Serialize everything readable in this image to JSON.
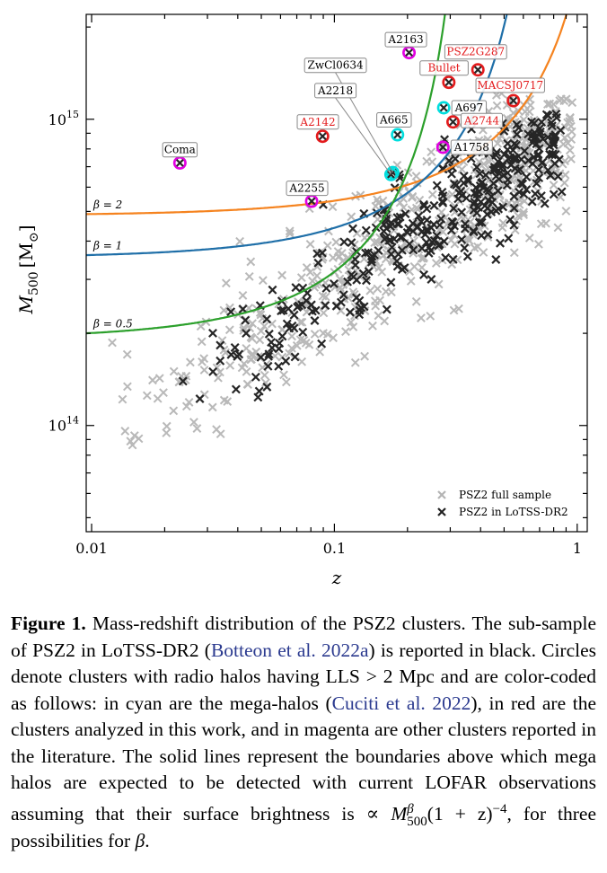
{
  "chart_data": {
    "type": "scatter",
    "xlabel": "z",
    "ylabel": "M",
    "ylabel_sub": "500",
    "ylabel_unit": "[M",
    "ylabel_unit_sub": "⊙",
    "ylabel_unit_close": "]",
    "xscale": "log",
    "yscale": "log",
    "xlim": [
      0.0095,
      1.1
    ],
    "ylim": [
      45000000000000.0,
      2200000000000000.0
    ],
    "x_ticks": [
      {
        "value": 0.01,
        "label": "0.01"
      },
      {
        "value": 0.1,
        "label": "0.1"
      },
      {
        "value": 1,
        "label": "1"
      }
    ],
    "y_ticks": [
      {
        "value": 100000000000000.0,
        "base": "10",
        "exp": "14"
      },
      {
        "value": 1000000000000000.0,
        "base": "10",
        "exp": "15"
      }
    ],
    "grid": false,
    "legend": {
      "position": "bottom-right",
      "entries": [
        {
          "label": "PSZ2 full sample",
          "marker": "x",
          "color": "#b4b4b4"
        },
        {
          "label": "PSZ2 in LoTSS-DR2",
          "marker": "x",
          "color": "#222222"
        }
      ]
    },
    "boundary_lines": [
      {
        "label": "β = 2",
        "color": "#f5831f",
        "z0": 0.0095,
        "m_at_z0": 490000000000000.0,
        "z_inf": 1.45
      },
      {
        "label": "β = 1",
        "color": "#1f6fa8",
        "z0": 0.0095,
        "m_at_z0": 360000000000000.0,
        "z_inf": 0.74
      },
      {
        "label": "β = 0.5",
        "color": "#2ca02c",
        "z0": 0.0095,
        "m_at_z0": 200000000000000.0,
        "z_inf": 0.36
      }
    ],
    "halos": [
      {
        "name": "Coma",
        "z": 0.0231,
        "m": 720000000000000.0,
        "color": "#e100e1",
        "category": "literature",
        "label_z": 0.0231,
        "label_m": 795000000000000.0
      },
      {
        "name": "A2255",
        "z": 0.0806,
        "m": 540000000000000.0,
        "color": "#e100e1",
        "category": "literature",
        "label_z": 0.0772,
        "label_m": 595000000000000.0
      },
      {
        "name": "A2142",
        "z": 0.0894,
        "m": 880000000000000.0,
        "color": "#e31a1c",
        "category": "this work",
        "label_z": 0.0855,
        "label_m": 980000000000000.0
      },
      {
        "name": "ZwCl0634",
        "z": 0.174,
        "m": 670000000000000.0,
        "color": "#00dede",
        "category": "mega-halo",
        "label_z": 0.101,
        "label_m": 1500000000000000.0
      },
      {
        "name": "A2218",
        "z": 0.171,
        "m": 660000000000000.0,
        "color": "#00dede",
        "category": "mega-halo",
        "label_z": 0.101,
        "label_m": 1240000000000000.0
      },
      {
        "name": "A665",
        "z": 0.182,
        "m": 890000000000000.0,
        "color": "#00dede",
        "category": "mega-halo",
        "label_z": 0.176,
        "label_m": 995000000000000.0
      },
      {
        "name": "A2163",
        "z": 0.203,
        "m": 1650000000000000.0,
        "color": "#e100e1",
        "category": "literature",
        "label_z": 0.197,
        "label_m": 1820000000000000.0
      },
      {
        "name": "A697",
        "z": 0.282,
        "m": 1090000000000000.0,
        "color": "#00dede",
        "category": "mega-halo",
        "label_z": 0.345,
        "label_m": 1090000000000000.0
      },
      {
        "name": "A1758",
        "z": 0.28,
        "m": 810000000000000.0,
        "color": "#e100e1",
        "category": "literature",
        "label_z": 0.36,
        "label_m": 810000000000000.0
      },
      {
        "name": "A2744",
        "z": 0.308,
        "m": 980000000000000.0,
        "color": "#e31a1c",
        "category": "this work",
        "label_z": 0.395,
        "label_m": 990000000000000.0
      },
      {
        "name": "Bullet",
        "z": 0.296,
        "m": 1320000000000000.0,
        "color": "#e31a1c",
        "category": "this work",
        "label_z": 0.283,
        "label_m": 1470000000000000.0
      },
      {
        "name": "PSZ2G287",
        "z": 0.39,
        "m": 1450000000000000.0,
        "color": "#e31a1c",
        "category": "this work",
        "label_z": 0.382,
        "label_m": 1660000000000000.0
      },
      {
        "name": "MACSJ0717",
        "z": 0.546,
        "m": 1150000000000000.0,
        "color": "#e31a1c",
        "category": "this work",
        "label_z": 0.53,
        "label_m": 1290000000000000.0
      }
    ]
  },
  "caption": {
    "fig_label": "Figure 1.",
    "text_1": " Mass-redshift distribution of the PSZ2 clusters. The sub-sample of PSZ2 in LoTSS-DR2 (",
    "cite_1": "Botteon et al. 2022a",
    "text_2": ") is reported in black. Circles denote clusters with radio halos having LLS > 2 Mpc and are color-coded as follows: in cyan are the mega-halos (",
    "cite_2": "Cuciti et al. 2022",
    "text_3": "), in red are the clusters analyzed in this work, and in magenta are other clusters reported in the literature. The solid lines represent the boundaries above which mega halos are expected to be detected with current LOFAR observations assuming that their surface brightness is ∝ ",
    "formula_base": "M",
    "formula_sup": "β",
    "formula_sub": "500",
    "formula_rest": "(1 + z)",
    "formula_exp": "−4",
    "text_4": ", for three possibilities for ",
    "text_end_symbol": "β",
    "text_5": "."
  }
}
